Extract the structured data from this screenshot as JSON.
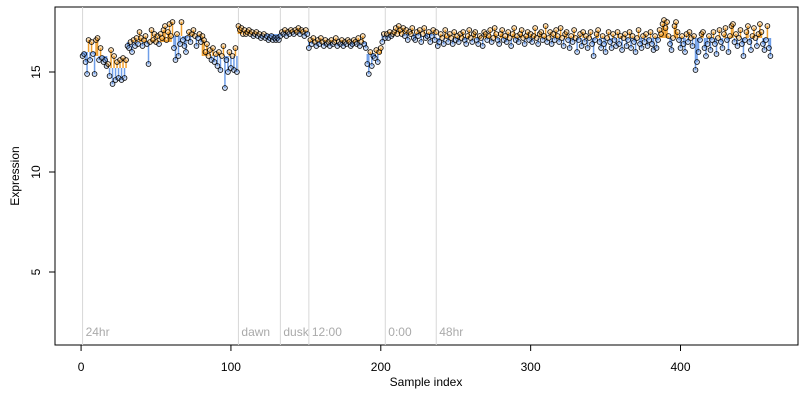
{
  "chart_data": {
    "type": "scatter",
    "x_label": "Sample index",
    "y_label": "Expression",
    "xlim": [
      -17.4,
      478.4
    ],
    "ylim": [
      1.35,
      18.25
    ],
    "xticks": [
      0,
      100,
      200,
      300,
      400
    ],
    "yticks": [
      5,
      10,
      15
    ],
    "point_color": "#000000",
    "above_color": "#f0a030",
    "below_color": "#6f9ee8",
    "event_color": "#d8d8d8",
    "events": [
      {
        "x": 1,
        "label": "24hr"
      },
      {
        "x": 105,
        "label": "dawn"
      },
      {
        "x": 133,
        "label": "dusk"
      },
      {
        "x": 152,
        "label": "12:00"
      },
      {
        "x": 203,
        "label": "0:00"
      },
      {
        "x": 237,
        "label": "48hr"
      }
    ],
    "fit": {
      "x": [
        1,
        10,
        18,
        31,
        61,
        81,
        105,
        133,
        152,
        191,
        201,
        238
      ],
      "values": [
        16.0,
        15.8,
        15.2,
        16.5,
        16.8,
        15.8,
        16.9,
        17.0,
        16.5,
        15.9,
        16.9,
        16.7
      ]
    },
    "x": [
      1,
      2,
      3,
      4,
      5,
      6,
      7,
      8,
      9,
      10,
      11,
      12,
      13,
      14,
      15,
      16,
      17,
      18,
      19,
      20,
      21,
      22,
      23,
      24,
      25,
      26,
      27,
      28,
      29,
      30,
      31,
      32,
      33,
      34,
      35,
      36,
      37,
      38,
      39,
      40,
      41,
      42,
      43,
      44,
      45,
      46,
      47,
      48,
      49,
      50,
      51,
      52,
      53,
      54,
      55,
      56,
      57,
      58,
      59,
      60,
      61,
      62,
      63,
      64,
      65,
      66,
      67,
      68,
      69,
      70,
      71,
      72,
      73,
      74,
      75,
      76,
      77,
      78,
      79,
      80,
      81,
      82,
      83,
      84,
      85,
      86,
      87,
      88,
      89,
      90,
      91,
      92,
      93,
      94,
      95,
      96,
      97,
      98,
      99,
      100,
      101,
      102,
      103,
      104,
      105,
      106,
      107,
      108,
      109,
      110,
      111,
      112,
      113,
      114,
      115,
      116,
      117,
      118,
      119,
      120,
      121,
      122,
      123,
      124,
      125,
      126,
      127,
      128,
      129,
      130,
      131,
      132,
      133,
      134,
      135,
      136,
      137,
      138,
      139,
      140,
      141,
      142,
      143,
      144,
      145,
      146,
      147,
      148,
      149,
      150,
      151,
      152,
      153,
      154,
      155,
      156,
      157,
      158,
      159,
      160,
      161,
      162,
      163,
      164,
      165,
      166,
      167,
      168,
      169,
      170,
      171,
      172,
      173,
      174,
      175,
      176,
      177,
      178,
      179,
      180,
      181,
      182,
      183,
      184,
      185,
      186,
      187,
      188,
      189,
      190,
      191,
      192,
      193,
      194,
      195,
      196,
      197,
      198,
      199,
      200,
      201,
      202,
      203,
      204,
      205,
      206,
      207,
      208,
      209,
      210,
      211,
      212,
      213,
      214,
      215,
      216,
      217,
      218,
      219,
      220,
      221,
      222,
      223,
      224,
      225,
      226,
      227,
      228,
      229,
      230,
      231,
      232,
      233,
      234,
      235,
      236,
      237,
      238,
      239,
      240,
      241,
      242,
      243,
      244,
      245,
      246,
      247,
      248,
      249,
      250,
      251,
      252,
      253,
      254,
      255,
      256,
      257,
      258,
      259,
      260,
      261,
      262,
      263,
      264,
      265,
      266,
      267,
      268,
      269,
      270,
      271,
      272,
      273,
      274,
      275,
      276,
      277,
      278,
      279,
      280,
      281,
      282,
      283,
      284,
      285,
      286,
      287,
      288,
      289,
      290,
      291,
      292,
      293,
      294,
      295,
      296,
      297,
      298,
      299,
      300,
      301,
      302,
      303,
      304,
      305,
      306,
      307,
      308,
      309,
      310,
      311,
      312,
      313,
      314,
      315,
      316,
      317,
      318,
      319,
      320,
      321,
      322,
      323,
      324,
      325,
      326,
      327,
      328,
      329,
      330,
      331,
      332,
      333,
      334,
      335,
      336,
      337,
      338,
      339,
      340,
      341,
      342,
      343,
      344,
      345,
      346,
      347,
      348,
      349,
      350,
      351,
      352,
      353,
      354,
      355,
      356,
      357,
      358,
      359,
      360,
      361,
      362,
      363,
      364,
      365,
      366,
      367,
      368,
      369,
      370,
      371,
      372,
      373,
      374,
      375,
      376,
      377,
      378,
      379,
      380,
      381,
      382,
      383,
      384,
      385,
      386,
      387,
      388,
      389,
      390,
      391,
      392,
      393,
      394,
      395,
      396,
      397,
      398,
      399,
      400,
      401,
      402,
      403,
      404,
      405,
      406,
      407,
      408,
      409,
      410,
      411,
      412,
      413,
      414,
      415,
      416,
      417,
      418,
      419,
      420,
      421,
      422,
      423,
      424,
      425,
      426,
      427,
      428,
      429,
      430,
      431,
      432,
      433,
      434,
      435,
      436,
      437,
      438,
      439,
      440,
      441,
      442,
      443,
      444,
      445,
      446,
      447,
      448,
      449,
      450,
      451,
      452,
      453,
      454,
      455,
      456,
      457,
      458,
      459,
      460
    ],
    "values": [
      15.8,
      15.9,
      15.5,
      14.9,
      16.6,
      15.6,
      16.5,
      15.9,
      14.9,
      16.6,
      16.7,
      15.6,
      16.2,
      15.7,
      15.5,
      15.6,
      15.3,
      15.4,
      14.8,
      16.1,
      14.4,
      15.8,
      14.6,
      15.5,
      14.7,
      15.6,
      14.6,
      15.7,
      14.7,
      15.6,
      16.3,
      16.2,
      16.5,
      16.0,
      16.6,
      16.3,
      16.7,
      16.4,
      17.0,
      16.7,
      16.3,
      16.6,
      16.8,
      16.4,
      15.4,
      16.5,
      17.1,
      16.6,
      16.9,
      16.5,
      16.8,
      16.4,
      16.9,
      16.7,
      17.1,
      17.3,
      16.6,
      17.0,
      17.4,
      16.8,
      17.5,
      16.2,
      15.6,
      16.9,
      15.8,
      16.4,
      17.5,
      16.6,
      16.3,
      16.0,
      16.7,
      17.0,
      16.5,
      16.9,
      17.1,
      16.8,
      16.3,
      16.7,
      16.9,
      16.5,
      16.8,
      16.6,
      16.0,
      16.4,
      15.8,
      16.1,
      15.6,
      16.2,
      15.5,
      15.9,
      15.3,
      16.0,
      15.1,
      15.8,
      16.3,
      14.2,
      15.6,
      15.0,
      16.0,
      15.2,
      15.8,
      15.1,
      16.2,
      15.0,
      17.3,
      17.1,
      17.2,
      16.9,
      17.1,
      16.9,
      17.0,
      17.1,
      16.9,
      17.0,
      16.8,
      16.9,
      17.0,
      16.8,
      16.9,
      16.7,
      16.8,
      16.9,
      16.7,
      16.8,
      16.6,
      16.7,
      16.8,
      16.6,
      16.7,
      16.6,
      16.7,
      16.6,
      16.8,
      17.0,
      16.9,
      17.1,
      16.8,
      17.0,
      16.9,
      17.1,
      17.0,
      16.9,
      17.1,
      17.0,
      17.2,
      16.9,
      17.1,
      17.0,
      16.8,
      17.1,
      16.9,
      16.2,
      16.6,
      16.4,
      16.7,
      16.5,
      16.3,
      16.6,
      16.4,
      16.7,
      16.5,
      16.3,
      16.6,
      16.4,
      16.5,
      16.3,
      16.6,
      16.4,
      16.5,
      16.7,
      16.3,
      16.5,
      16.4,
      16.6,
      16.3,
      16.5,
      16.4,
      16.6,
      16.5,
      16.3,
      16.4,
      16.6,
      16.5,
      16.4,
      16.7,
      16.3,
      16.5,
      16.8,
      16.4,
      16.2,
      15.4,
      14.9,
      16.0,
      15.3,
      15.8,
      15.7,
      16.1,
      15.5,
      16.0,
      16.2,
      16.5,
      16.9,
      16.7,
      16.9,
      16.7,
      17.0,
      16.8,
      16.9,
      17.0,
      17.2,
      16.9,
      17.3,
      17.1,
      16.9,
      17.2,
      16.8,
      17.1,
      16.6,
      17.0,
      16.9,
      17.2,
      16.7,
      16.6,
      17.0,
      16.8,
      17.1,
      16.5,
      16.9,
      17.2,
      16.7,
      16.8,
      17.0,
      16.5,
      16.8,
      17.1,
      16.6,
      17.0,
      16.3,
      16.5,
      16.9,
      16.7,
      16.4,
      17.1,
      16.8,
      16.5,
      16.9,
      16.7,
      16.4,
      17.0,
      16.6,
      16.8,
      16.5,
      16.9,
      16.7,
      17.0,
      16.6,
      16.4,
      16.8,
      17.1,
      16.7,
      16.5,
      16.9,
      17.0,
      16.6,
      16.4,
      16.8,
      16.7,
      16.3,
      17.0,
      16.9,
      16.6,
      16.8,
      17.1,
      16.5,
      16.7,
      17.2,
      16.9,
      16.6,
      16.4,
      16.9,
      17.1,
      16.6,
      16.8,
      16.5,
      17.0,
      16.7,
      16.3,
      16.9,
      17.2,
      16.6,
      16.8,
      16.5,
      16.9,
      17.1,
      16.7,
      16.4,
      16.8,
      17.0,
      16.6,
      16.9,
      16.5,
      16.8,
      17.2,
      16.7,
      16.4,
      16.9,
      17.0,
      16.6,
      16.8,
      17.3,
      16.5,
      16.7,
      17.0,
      16.4,
      16.9,
      16.6,
      17.1,
      16.8,
      16.5,
      17.2,
      16.7,
      16.3,
      16.9,
      17.0,
      16.6,
      16.2,
      16.8,
      16.5,
      17.1,
      16.7,
      16.0,
      16.6,
      16.9,
      16.3,
      17.0,
      16.5,
      16.8,
      16.2,
      16.7,
      17.0,
      16.4,
      15.8,
      16.6,
      16.9,
      17.1,
      16.5,
      16.2,
      16.8,
      16.4,
      16.0,
      16.7,
      17.0,
      16.5,
      16.2,
      16.9,
      16.6,
      16.3,
      17.0,
      16.4,
      16.8,
      16.1,
      16.7,
      16.9,
      16.3,
      16.6,
      17.0,
      16.2,
      16.8,
      16.5,
      16.0,
      16.7,
      17.1,
      16.4,
      16.2,
      16.8,
      16.5,
      16.9,
      16.3,
      16.6,
      17.0,
      16.4,
      16.1,
      16.8,
      16.2,
      16.6,
      17.1,
      16.9,
      17.4,
      17.6,
      17.2,
      17.5,
      16.8,
      16.4,
      16.1,
      16.7,
      17.3,
      17.5,
      17.0,
      16.6,
      16.2,
      16.8,
      16.4,
      16.0,
      16.9,
      16.5,
      17.0,
      16.7,
      16.3,
      16.8,
      15.1,
      15.5,
      16.0,
      16.6,
      16.9,
      17.0,
      16.2,
      15.8,
      16.4,
      16.8,
      16.1,
      16.6,
      17.0,
      16.4,
      15.9,
      16.7,
      17.1,
      16.5,
      16.2,
      16.9,
      17.2,
      16.6,
      16.0,
      16.8,
      17.3,
      17.4,
      16.5,
      16.9,
      16.3,
      16.7,
      17.1,
      16.4,
      15.8,
      16.6,
      17.0,
      17.3,
      16.5,
      16.1,
      16.8,
      17.2,
      16.7,
      16.3,
      16.9,
      17.4,
      17.0,
      16.4,
      16.1,
      16.6,
      17.3,
      16.2,
      15.8
    ]
  }
}
